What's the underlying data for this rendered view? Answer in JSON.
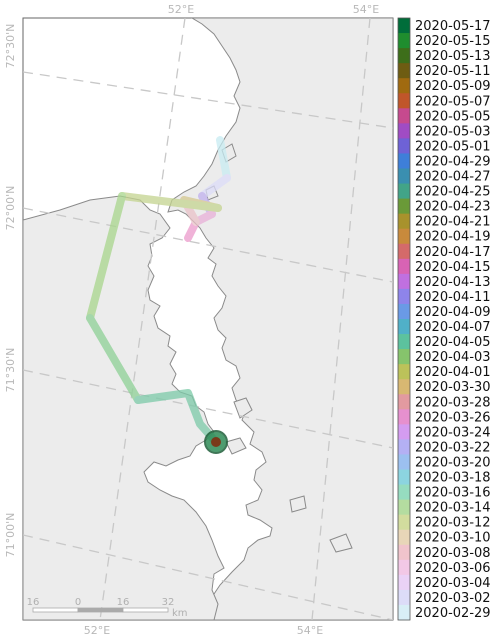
{
  "map": {
    "graticule_labels": {
      "top": [
        "52°E",
        "54°E"
      ],
      "bottom": [
        "52°E",
        "54°E"
      ],
      "left": [
        "72°30'N",
        "72°00'N",
        "71°30'N",
        "71°00'N"
      ]
    },
    "scale_bar": {
      "ticks": [
        "16",
        "0",
        "16",
        "32"
      ],
      "unit": "km"
    },
    "colors": {
      "land": "#ececec",
      "sea": "#ffffff",
      "coast": "#8a8a8a",
      "graticule": "#c8c8c8",
      "track_hi": "#2e8b57"
    }
  },
  "legend": {
    "dates": [
      "2020-05-17",
      "2020-05-15",
      "2020-05-13",
      "2020-05-11",
      "2020-05-09",
      "2020-05-07",
      "2020-05-05",
      "2020-05-03",
      "2020-05-01",
      "2020-04-29",
      "2020-04-27",
      "2020-04-25",
      "2020-04-23",
      "2020-04-21",
      "2020-04-19",
      "2020-04-17",
      "2020-04-15",
      "2020-04-13",
      "2020-04-11",
      "2020-04-09",
      "2020-04-07",
      "2020-04-05",
      "2020-04-03",
      "2020-04-01",
      "2020-03-30",
      "2020-03-28",
      "2020-03-26",
      "2020-03-24",
      "2020-03-22",
      "2020-03-20",
      "2020-03-18",
      "2020-03-16",
      "2020-03-14",
      "2020-03-12",
      "2020-03-10",
      "2020-03-08",
      "2020-03-06",
      "2020-03-04",
      "2020-03-02",
      "2020-02-29"
    ],
    "colors": [
      "#006d3a",
      "#1f8d2e",
      "#3d6e1a",
      "#6e5c12",
      "#a06a10",
      "#c0562a",
      "#c64a8e",
      "#a04cc4",
      "#6e62d6",
      "#3e7fd9",
      "#3a8fb0",
      "#42a488",
      "#6a9a38",
      "#a8922c",
      "#c88a3c",
      "#d46a6a",
      "#d863b4",
      "#c070e0",
      "#8e84ea",
      "#6a9ae6",
      "#50b0c8",
      "#5cc29e",
      "#86c46c",
      "#bcc25a",
      "#d8b872",
      "#e29aa0",
      "#e690ce",
      "#d49cf0",
      "#b4b0f4",
      "#9cc0f0",
      "#8cd4e0",
      "#96dcc0",
      "#b4dca0",
      "#d2dc9e",
      "#e8d6b8",
      "#f0c4cc",
      "#f2c8e6",
      "#ead2f6",
      "#dcdcf8",
      "#d8eef6"
    ]
  }
}
